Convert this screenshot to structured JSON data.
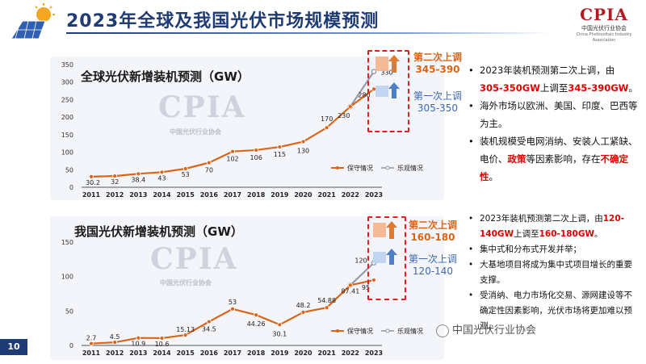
{
  "page": {
    "title": "2023年全球及我国光伏市场规模预测",
    "page_number": "10",
    "logo": {
      "text": "CPIA",
      "sub": "中国光伏行业协会",
      "sub_en": "China Photovoltaic Industry Association"
    },
    "watermark_text": "CPIA",
    "watermark_sub": "中国光伏行业协会",
    "wechat_label": "中国光伏行业协会"
  },
  "chart_data": [
    {
      "type": "line",
      "title": "全球光伏新增装机预测（GW）",
      "x": [
        "2011",
        "2012",
        "2013",
        "2014",
        "2015",
        "2016",
        "2017",
        "2018",
        "2019",
        "2020",
        "2021",
        "2022",
        "2023"
      ],
      "series": [
        {
          "name": "保守情况",
          "values": [
            30.2,
            32,
            38.4,
            43,
            53,
            70,
            102,
            106,
            115,
            130,
            170,
            230,
            280
          ],
          "labels": [
            "30.2",
            "32",
            "38.4",
            "43",
            "53",
            "70",
            "102",
            "106",
            "115",
            "130",
            "170",
            "230",
            "280"
          ],
          "color": "#d9651a"
        },
        {
          "name": "乐观情况",
          "x": [
            "2022",
            "2023"
          ],
          "values": [
            230,
            330
          ],
          "labels": [
            "",
            "330"
          ],
          "color": "#8f96a3"
        }
      ],
      "ylim": [
        0,
        350
      ],
      "yticks": [
        0,
        50,
        100,
        150,
        200,
        250,
        300,
        350
      ],
      "legend": "bottom-right",
      "grid": false,
      "annotations": {
        "second": {
          "label": "第二次上调",
          "value": "345-390"
        },
        "first": {
          "label": "第一次上调",
          "value": "305-350"
        }
      }
    },
    {
      "type": "line",
      "title": "我国光伏新增装机预测（GW）",
      "x": [
        "2011",
        "2012",
        "2013",
        "2014",
        "2015",
        "2016",
        "2017",
        "2018",
        "2019",
        "2020",
        "2021",
        "2022",
        "2023"
      ],
      "series": [
        {
          "name": "保守情况",
          "values": [
            2.7,
            4.5,
            10.9,
            10.6,
            15.13,
            34.5,
            53,
            44.26,
            30.1,
            48.2,
            54.88,
            87.41,
            95
          ],
          "labels": [
            "2.7",
            "4.5",
            "10.9",
            "10.6",
            "15.13",
            "34.5",
            "53",
            "44.26",
            "30.1",
            "48.2",
            "54.88",
            "87.41",
            "95"
          ],
          "color": "#d9651a"
        },
        {
          "name": "乐观情况",
          "x": [
            "2022",
            "2023"
          ],
          "values": [
            87.41,
            120
          ],
          "labels": [
            "",
            "120"
          ],
          "color": "#8f96a3"
        }
      ],
      "ylim": [
        0,
        150
      ],
      "yticks": [
        0,
        50,
        100,
        150
      ],
      "legend": "bottom-right",
      "grid": false,
      "annotations": {
        "second": {
          "label": "第二次上调",
          "value": "160-180"
        },
        "first": {
          "label": "第一次上调",
          "value": "120-140"
        }
      }
    }
  ],
  "right_panel_1": [
    {
      "parts": [
        {
          "t": "2023年装机预测第二次上调，由"
        },
        {
          "t": "305-350GW",
          "red": true
        },
        {
          "t": "上调至"
        },
        {
          "t": "345-390GW",
          "red": true
        },
        {
          "t": "。"
        }
      ]
    },
    {
      "parts": [
        {
          "t": "海外市场以欧洲、美国、印度、巴西等为主。"
        }
      ]
    },
    {
      "parts": [
        {
          "t": "装机规模受电网消纳、安装人工紧缺、电价、"
        },
        {
          "t": "政策",
          "red": true
        },
        {
          "t": "等因素影响，存在"
        },
        {
          "t": "不确定性",
          "red": true
        },
        {
          "t": "。"
        }
      ]
    }
  ],
  "right_panel_2": [
    {
      "parts": [
        {
          "t": "2023年装机预测第二次上调，由"
        },
        {
          "t": "120-140GW",
          "red": true
        },
        {
          "t": "上调至"
        },
        {
          "t": "160-180GW",
          "red": true
        },
        {
          "t": "。"
        }
      ]
    },
    {
      "parts": [
        {
          "t": "集中式和分布式开发并举；"
        }
      ]
    },
    {
      "parts": [
        {
          "t": "大基地项目将成为集中式项目增长的重要支撑。"
        }
      ]
    },
    {
      "parts": [
        {
          "t": "受消纳、电力市场化交易、源网建设等不确定性因素影响，光伏市场将更加难以预测。"
        }
      ]
    }
  ]
}
